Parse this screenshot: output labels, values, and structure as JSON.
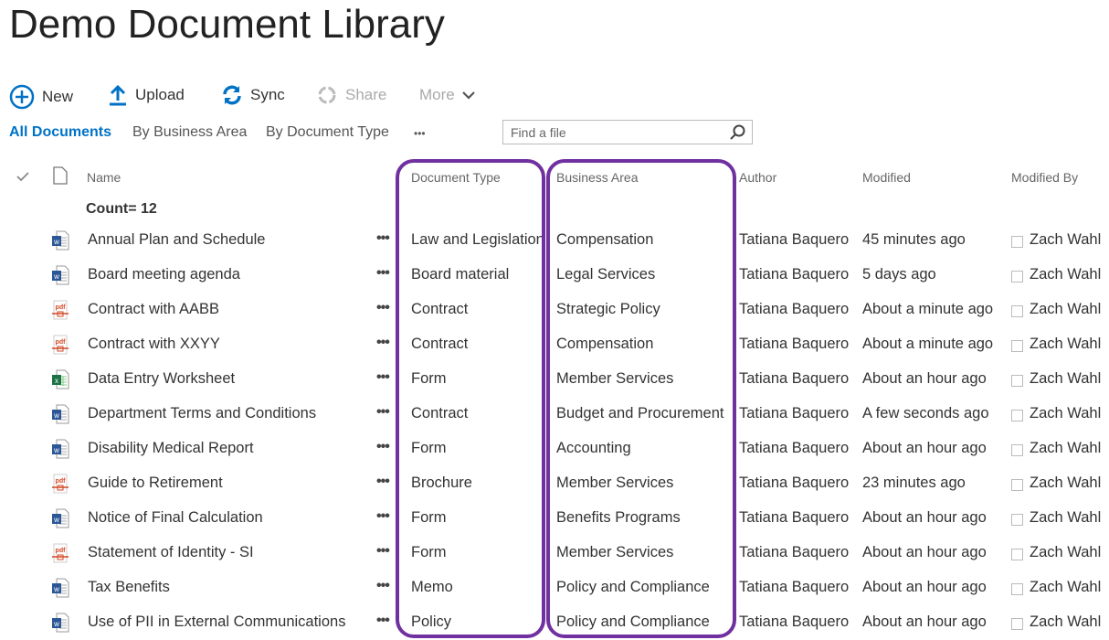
{
  "title": "Demo Document Library",
  "toolbar": {
    "new": "New",
    "upload": "Upload",
    "sync": "Sync",
    "share": "Share",
    "more": "More"
  },
  "views": {
    "all": "All Documents",
    "business": "By Business Area",
    "doctype": "By Document Type",
    "more": "•••"
  },
  "search": {
    "placeholder": "Find a file"
  },
  "columns": {
    "name": "Name",
    "doctype": "Document Type",
    "business": "Business Area",
    "author": "Author",
    "modified": "Modified",
    "modified_by": "Modified By"
  },
  "count": "Count= 12",
  "accent": "#0072c6",
  "highlight": "#7030a0",
  "rows": [
    {
      "icon": "word",
      "name": "Annual Plan and Schedule",
      "doctype": "Law and Legislation",
      "business": "Compensation",
      "author": "Tatiana Baquero",
      "modified": "45 minutes ago",
      "modified_by": "Zach Wahl"
    },
    {
      "icon": "word",
      "name": "Board meeting agenda",
      "doctype": "Board material",
      "business": "Legal Services",
      "author": "Tatiana Baquero",
      "modified": "5 days ago",
      "modified_by": "Zach Wahl"
    },
    {
      "icon": "pdf",
      "name": "Contract with AABB",
      "doctype": "Contract",
      "business": "Strategic Policy",
      "author": "Tatiana Baquero",
      "modified": "About a minute ago",
      "modified_by": "Zach Wahl"
    },
    {
      "icon": "pdf",
      "name": "Contract with XXYY",
      "doctype": "Contract",
      "business": "Compensation",
      "author": "Tatiana Baquero",
      "modified": "About a minute ago",
      "modified_by": "Zach Wahl"
    },
    {
      "icon": "excel",
      "name": "Data Entry Worksheet",
      "doctype": "Form",
      "business": "Member Services",
      "author": "Tatiana Baquero",
      "modified": "About an hour ago",
      "modified_by": "Zach Wahl"
    },
    {
      "icon": "word",
      "name": "Department Terms and Conditions",
      "doctype": "Contract",
      "business": "Budget and Procurement",
      "author": "Tatiana Baquero",
      "modified": "A few seconds ago",
      "modified_by": "Zach Wahl"
    },
    {
      "icon": "word",
      "name": "Disability Medical Report",
      "doctype": "Form",
      "business": "Accounting",
      "author": "Tatiana Baquero",
      "modified": "About an hour ago",
      "modified_by": "Zach Wahl"
    },
    {
      "icon": "pdf",
      "name": "Guide to Retirement",
      "doctype": "Brochure",
      "business": "Member Services",
      "author": "Tatiana Baquero",
      "modified": "23 minutes ago",
      "modified_by": "Zach Wahl"
    },
    {
      "icon": "word",
      "name": "Notice of Final Calculation",
      "doctype": "Form",
      "business": "Benefits Programs",
      "author": "Tatiana Baquero",
      "modified": "About an hour ago",
      "modified_by": "Zach Wahl"
    },
    {
      "icon": "pdf",
      "name": "Statement of Identity - SI",
      "doctype": "Form",
      "business": "Member Services",
      "author": "Tatiana Baquero",
      "modified": "About an hour ago",
      "modified_by": "Zach Wahl"
    },
    {
      "icon": "word",
      "name": "Tax Benefits",
      "doctype": "Memo",
      "business": "Policy and Compliance",
      "author": "Tatiana Baquero",
      "modified": "About an hour ago",
      "modified_by": "Zach Wahl"
    },
    {
      "icon": "word",
      "name": "Use of PII in External Communications",
      "doctype": "Policy",
      "business": "Policy and Compliance",
      "author": "Tatiana Baquero",
      "modified": "About an hour ago",
      "modified_by": "Zach Wahl"
    }
  ]
}
